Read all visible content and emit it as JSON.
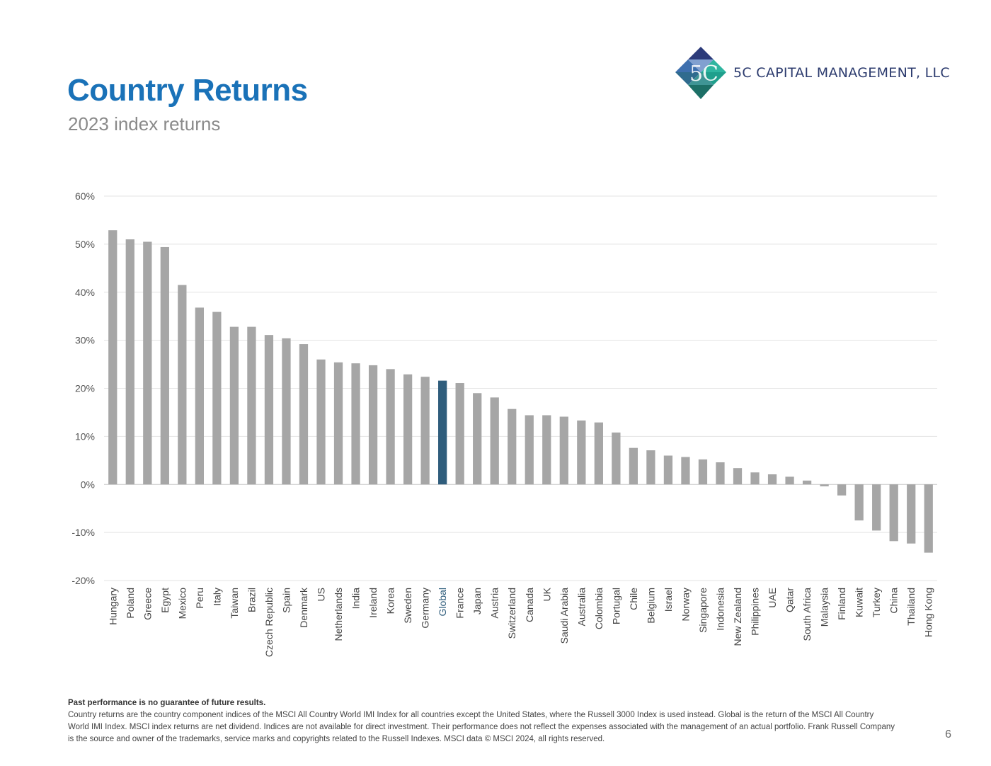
{
  "header": {
    "title": "Country Returns",
    "subtitle": "2023 index returns",
    "company": "5C CAPITAL MANAGEMENT, LLC",
    "logo_icon": "5c-diamond-logo-icon"
  },
  "chart_data": {
    "type": "bar",
    "title": "",
    "xlabel": "",
    "ylabel": "",
    "ylim": [
      -20,
      60
    ],
    "yticks": [
      60,
      50,
      40,
      30,
      20,
      10,
      0,
      -10,
      -20
    ],
    "ytick_labels": [
      "60%",
      "50%",
      "40%",
      "30%",
      "20%",
      "10%",
      "0%",
      "-10%",
      "-20%"
    ],
    "grid": true,
    "colors": {
      "default": "#a6a6a6",
      "highlight": "#2f5d7c",
      "highlight_label": "#2f5d7c"
    },
    "highlight_category": "Global",
    "categories": [
      "Hungary",
      "Poland",
      "Greece",
      "Egypt",
      "Mexico",
      "Peru",
      "Italy",
      "Taiwan",
      "Brazil",
      "Czech Republic",
      "Spain",
      "Denmark",
      "US",
      "Netherlands",
      "India",
      "Ireland",
      "Korea",
      "Sweden",
      "Germany",
      "Global",
      "France",
      "Japan",
      "Austria",
      "Switzerland",
      "Canada",
      "UK",
      "Saudi Arabia",
      "Australia",
      "Colombia",
      "Portugal",
      "Chile",
      "Belgium",
      "Israel",
      "Norway",
      "Singapore",
      "Indonesia",
      "New Zealand",
      "Philippines",
      "UAE",
      "Qatar",
      "South Africa",
      "Malaysia",
      "Finland",
      "Kuwait",
      "Turkey",
      "China",
      "Thailand",
      "Hong Kong"
    ],
    "values": [
      52.9,
      51.0,
      50.5,
      49.4,
      41.5,
      36.8,
      35.9,
      32.8,
      32.8,
      31.1,
      30.4,
      29.2,
      26.0,
      25.4,
      25.2,
      24.8,
      24.0,
      22.9,
      22.4,
      21.6,
      21.1,
      19.0,
      18.1,
      15.7,
      14.4,
      14.4,
      14.1,
      13.3,
      12.9,
      10.8,
      7.6,
      7.1,
      6.0,
      5.7,
      5.2,
      4.6,
      3.4,
      2.5,
      2.1,
      1.6,
      0.8,
      -0.4,
      -2.3,
      -7.5,
      -9.6,
      -11.8,
      -12.3,
      -14.2
    ]
  },
  "footnote": {
    "disclaimer": "Past performance is no guarantee of future results.",
    "body": "Country returns are the country component indices of the MSCI All Country World IMI Index for all countries except the United States, where the Russell 3000 Index is used instead. Global is the return of the MSCI All Country World IMI Index. MSCI index returns are net dividend. Indices are not available for direct investment. Their performance does not reflect the expenses associated with the management of an actual portfolio. Frank Russell Company is the source and owner of the trademarks, service marks and copyrights related to the Russell Indexes. MSCI data © MSCI 2024, all rights reserved."
  },
  "page_number": "6"
}
